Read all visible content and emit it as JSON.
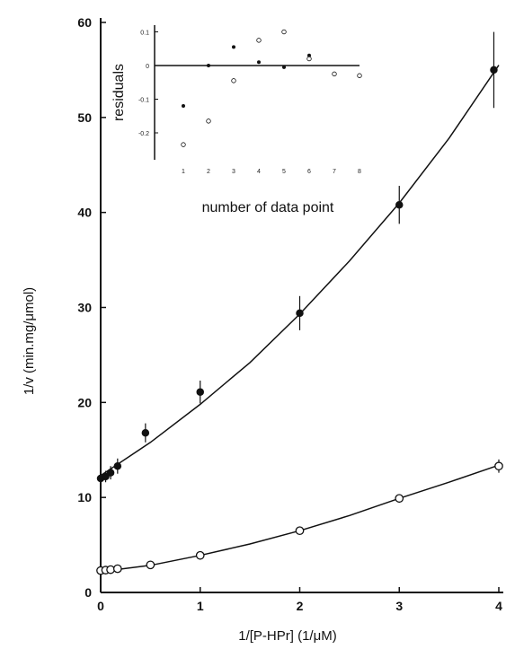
{
  "chart_data": [
    {
      "type": "line",
      "xlabel": "1/[P-HPr] (1/μM)",
      "ylabel": "1/v (min.mg/μmol)",
      "xlim": [
        0,
        4
      ],
      "ylim": [
        0,
        60
      ],
      "x_ticks": [
        "0",
        "1",
        "2",
        "3",
        "4"
      ],
      "y_ticks": [
        "0",
        "10",
        "20",
        "30",
        "40",
        "50",
        "60"
      ],
      "grid": false,
      "series": [
        {
          "marker": "filled-circle",
          "points": [
            {
              "x": 0.0,
              "y": 12.0,
              "err": 0.6
            },
            {
              "x": 0.05,
              "y": 12.2,
              "err": 0.6
            },
            {
              "x": 0.1,
              "y": 12.6,
              "err": 0.7
            },
            {
              "x": 0.17,
              "y": 13.3,
              "err": 0.8
            },
            {
              "x": 0.45,
              "y": 16.8,
              "err": 1.0
            },
            {
              "x": 1.0,
              "y": 21.1,
              "err": 1.2
            },
            {
              "x": 2.0,
              "y": 29.4,
              "err": 1.8
            },
            {
              "x": 3.0,
              "y": 40.8,
              "err": 2.0
            },
            {
              "x": 3.95,
              "y": 55.0,
              "err": 4.0
            }
          ],
          "fit": [
            [
              0,
              12.3
            ],
            [
              0.5,
              15.8
            ],
            [
              1,
              19.8
            ],
            [
              1.5,
              24.2
            ],
            [
              2,
              29.3
            ],
            [
              2.5,
              34.9
            ],
            [
              3,
              41.0
            ],
            [
              3.5,
              47.8
            ],
            [
              4,
              55.5
            ]
          ]
        },
        {
          "marker": "open-circle",
          "points": [
            {
              "x": 0.0,
              "y": 2.3,
              "err": 0.3
            },
            {
              "x": 0.05,
              "y": 2.35,
              "err": 0.3
            },
            {
              "x": 0.1,
              "y": 2.4,
              "err": 0.3
            },
            {
              "x": 0.17,
              "y": 2.5,
              "err": 0.3
            },
            {
              "x": 0.5,
              "y": 2.9,
              "err": 0.3
            },
            {
              "x": 1.0,
              "y": 3.9,
              "err": 0.3
            },
            {
              "x": 2.0,
              "y": 6.5,
              "err": 0.3
            },
            {
              "x": 3.0,
              "y": 9.9,
              "err": 0.4
            },
            {
              "x": 4.0,
              "y": 13.3,
              "err": 0.7
            }
          ],
          "fit": [
            [
              0,
              2.2
            ],
            [
              0.5,
              2.85
            ],
            [
              1,
              3.9
            ],
            [
              1.5,
              5.1
            ],
            [
              2,
              6.5
            ],
            [
              2.5,
              8.1
            ],
            [
              3,
              9.9
            ],
            [
              3.5,
              11.6
            ],
            [
              4,
              13.4
            ]
          ]
        }
      ]
    },
    {
      "type": "scatter",
      "xlabel": "number of data point",
      "ylabel": "residuals",
      "xlim": [
        1,
        8
      ],
      "ylim": [
        -0.25,
        0.12
      ],
      "x_ticks": [
        "1",
        "2",
        "3",
        "4",
        "5",
        "6",
        "7",
        "8"
      ],
      "y_ticks": [
        "0.1",
        "0",
        "-0.1",
        "-0.2"
      ],
      "series": [
        {
          "marker": "filled-dot",
          "points": [
            [
              1,
              -0.12
            ],
            [
              2,
              0.0
            ],
            [
              3,
              0.055
            ],
            [
              4,
              0.01
            ],
            [
              5,
              -0.005
            ],
            [
              6,
              0.03
            ]
          ]
        },
        {
          "marker": "open-circle",
          "points": [
            [
              1,
              -0.235
            ],
            [
              2,
              -0.165
            ],
            [
              3,
              -0.045
            ],
            [
              4,
              0.075
            ],
            [
              5,
              0.1
            ],
            [
              6,
              0.02
            ],
            [
              7,
              -0.025
            ],
            [
              8,
              -0.03
            ]
          ]
        }
      ]
    }
  ]
}
